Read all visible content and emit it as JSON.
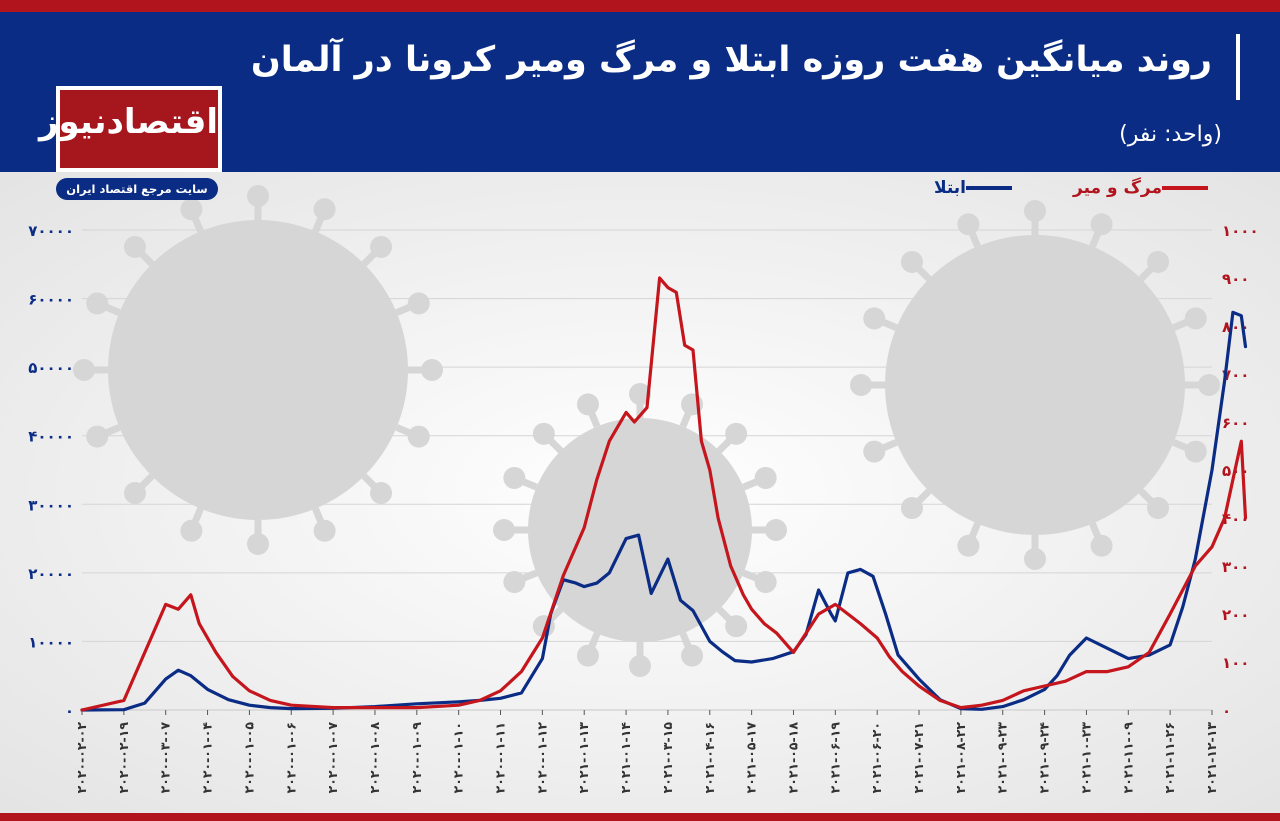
{
  "header": {
    "title": "روند میانگین هفت روزه ابتلا و مرگ ومیر کرونا در آلمان",
    "unit": "(واحد: نفر)"
  },
  "logo": {
    "name": "اقتصادنیوز",
    "tagline": "سایت مرجع اقتصاد ایران"
  },
  "colors": {
    "header_bg": "#0b2c85",
    "accent_red": "#b1141d",
    "cases_line": "#0b2c85",
    "deaths_line": "#c4161c",
    "grid": "#d5d5d5"
  },
  "chart_data": {
    "type": "line",
    "grid": true,
    "legend_position": "top-right",
    "x_labels": [
      "۲۰۲۰-۰۲-۰۲",
      "۲۰۲۰-۰۲-۱۹",
      "۲۰۲۰-۰۳-۰۷",
      "۲۰۲۰-۰۱-۰۴",
      "۲۰۲۰-۰۱-۰۵",
      "۲۰۲۰-۰۱-۰۶",
      "۲۰۲۰-۰۱-۰۷",
      "۲۰۲۰-۰۱-۰۸",
      "۲۰۲۰-۰۱-۰۹",
      "۲۰۲۰-۰۱-۱۰",
      "۲۰۲۰-۰۱-۱۱",
      "۲۰۲۰-۰۱-۱۲",
      "۲۰۲۱-۰۱-۱۳",
      "۲۰۲۱-۰۱-۱۴",
      "۲۰۲۱-۰۳-۱۵",
      "۲۰۲۱-۰۴-۱۶",
      "۲۰۲۱-۰۵-۱۷",
      "۲۰۲۱-۰۵-۱۸",
      "۲۰۲۱-۰۶-۱۹",
      "۲۰۲۱-۰۶-۲۰",
      "۲۰۲۱-۰۷-۲۱",
      "۲۰۲۱-۰۸-۲۲",
      "۲۰۲۱-۰۹-۲۳",
      "۲۰۲۱-۰۹-۲۴",
      "۲۰۲۱-۱۰-۲۳",
      "۲۰۲۱-۱۱-۰۹",
      "۲۰۲۱-۱۱-۲۶",
      "۲۰۲۱-۱۲-۱۳"
    ],
    "y_left": {
      "min": 0,
      "max": 70000,
      "ticks": [
        0,
        10000,
        20000,
        30000,
        40000,
        50000,
        60000,
        70000
      ],
      "tick_labels": [
        "۰",
        "۱۰۰۰۰",
        "۲۰۰۰۰",
        "۳۰۰۰۰",
        "۴۰۰۰۰",
        "۵۰۰۰۰",
        "۶۰۰۰۰",
        "۷۰۰۰۰"
      ]
    },
    "y_right": {
      "min": 0,
      "max": 1000,
      "ticks": [
        0,
        100,
        200,
        300,
        400,
        500,
        600,
        700,
        800,
        900,
        1000
      ],
      "tick_labels": [
        "۰",
        "۱۰۰",
        "۲۰۰",
        "۳۰۰",
        "۴۰۰",
        "۵۰۰",
        "۶۰۰",
        "۷۰۰",
        "۸۰۰",
        "۹۰۰",
        "۱۰۰۰"
      ]
    },
    "series": [
      {
        "name": "ابتلا",
        "axis": "left",
        "x": [
          0,
          1,
          1.5,
          2,
          2.3,
          2.6,
          3,
          3.5,
          4,
          4.5,
          5,
          6,
          7,
          8,
          9,
          9.5,
          10,
          10.5,
          11,
          11.2,
          11.5,
          11.8,
          12,
          12.3,
          12.6,
          13,
          13.3,
          13.6,
          14,
          14.3,
          14.6,
          15,
          15.3,
          15.6,
          16,
          16.5,
          17,
          17.3,
          17.6,
          17.9,
          18,
          18.3,
          18.6,
          18.9,
          19.2,
          19.5,
          20,
          20.5,
          21,
          21.5,
          22,
          22.5,
          23,
          23.3,
          23.6,
          24,
          24.5,
          25,
          25.5,
          26,
          26.3,
          26.6,
          27,
          27.3,
          27.5,
          27.7,
          27.8
        ],
        "values": [
          0,
          50,
          1000,
          4500,
          5800,
          5000,
          3000,
          1500,
          700,
          350,
          200,
          250,
          500,
          900,
          1200,
          1400,
          1700,
          2500,
          7500,
          14000,
          19000,
          18500,
          18000,
          18500,
          20000,
          25000,
          25500,
          17000,
          22000,
          16000,
          14500,
          10000,
          8500,
          7200,
          7000,
          7500,
          8500,
          11000,
          17500,
          14000,
          13000,
          20000,
          20500,
          19500,
          14000,
          8000,
          4500,
          1500,
          200,
          100,
          500,
          1500,
          3000,
          5000,
          8000,
          10500,
          9000,
          7500,
          8000,
          9500,
          15000,
          22000,
          35000,
          48000,
          58000,
          57500,
          53000
        ]
      },
      {
        "name": "مرگ و میر",
        "axis": "right",
        "x": [
          0,
          1,
          1.5,
          2,
          2.3,
          2.6,
          2.8,
          3.2,
          3.6,
          4,
          4.5,
          5,
          6,
          7,
          8,
          9,
          9.5,
          10,
          10.5,
          11,
          11.5,
          12,
          12.3,
          12.6,
          13,
          13.2,
          13.5,
          13.8,
          14,
          14.2,
          14.4,
          14.6,
          14.8,
          15,
          15.2,
          15.5,
          15.8,
          16,
          16.3,
          16.6,
          16.8,
          17,
          17.3,
          17.6,
          17.8,
          18,
          18.3,
          18.6,
          19,
          19.3,
          19.6,
          20,
          20.5,
          21,
          21.5,
          22,
          22.5,
          23,
          23.5,
          24,
          24.5,
          25,
          25.5,
          26,
          26.3,
          26.6,
          27,
          27.3,
          27.5,
          27.7,
          27.8
        ],
        "values": [
          0,
          20,
          120,
          220,
          210,
          240,
          180,
          120,
          70,
          40,
          20,
          10,
          5,
          5,
          5,
          10,
          20,
          40,
          80,
          150,
          280,
          380,
          480,
          560,
          620,
          600,
          630,
          900,
          880,
          870,
          760,
          750,
          560,
          500,
          400,
          300,
          240,
          210,
          180,
          160,
          140,
          120,
          160,
          200,
          210,
          220,
          200,
          180,
          150,
          110,
          80,
          50,
          20,
          5,
          10,
          20,
          40,
          50,
          60,
          80,
          80,
          90,
          120,
          200,
          250,
          300,
          340,
          400,
          480,
          560,
          400
        ]
      }
    ]
  }
}
